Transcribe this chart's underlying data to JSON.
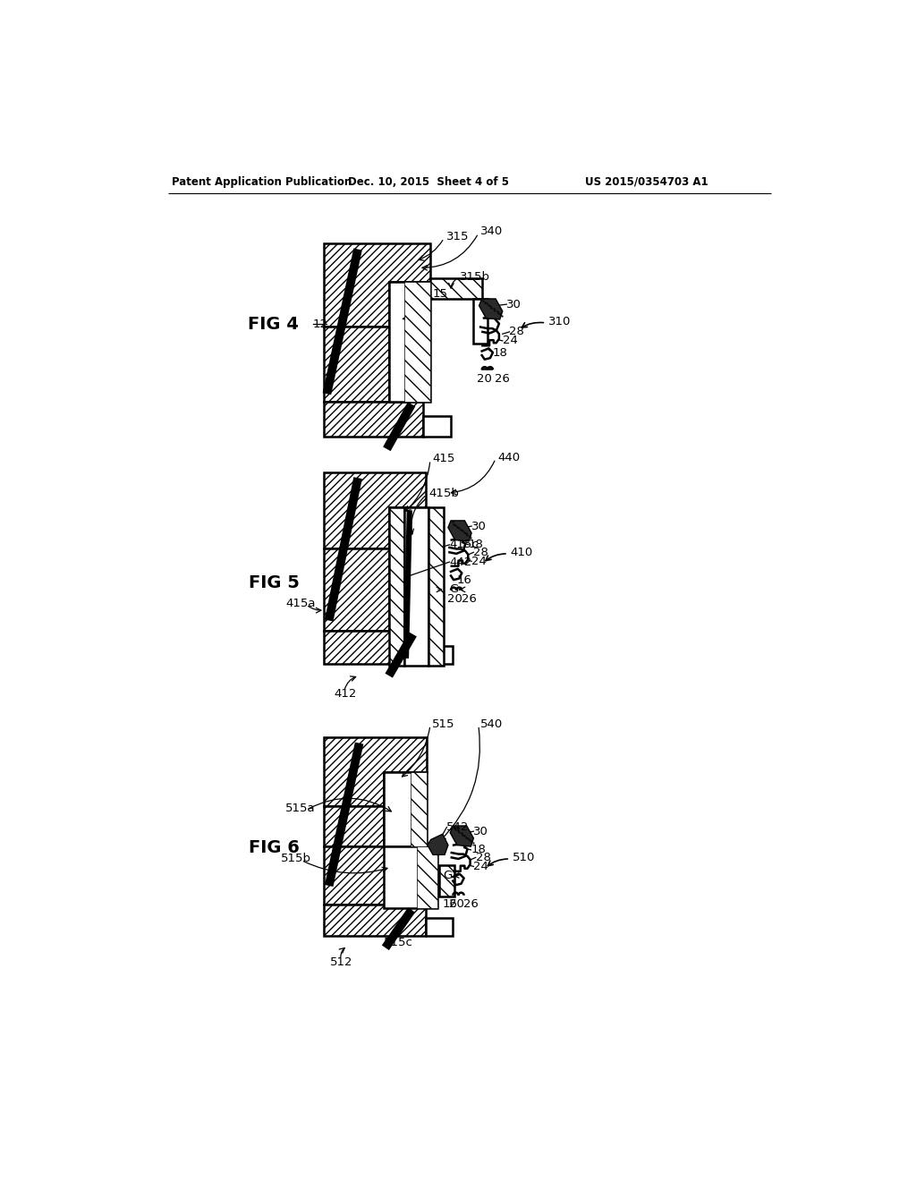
{
  "bg": "#ffffff",
  "header_left": "Patent Application Publication",
  "header_center": "Dec. 10, 2015  Sheet 4 of 5",
  "header_right": "US 2015/0354703 A1"
}
